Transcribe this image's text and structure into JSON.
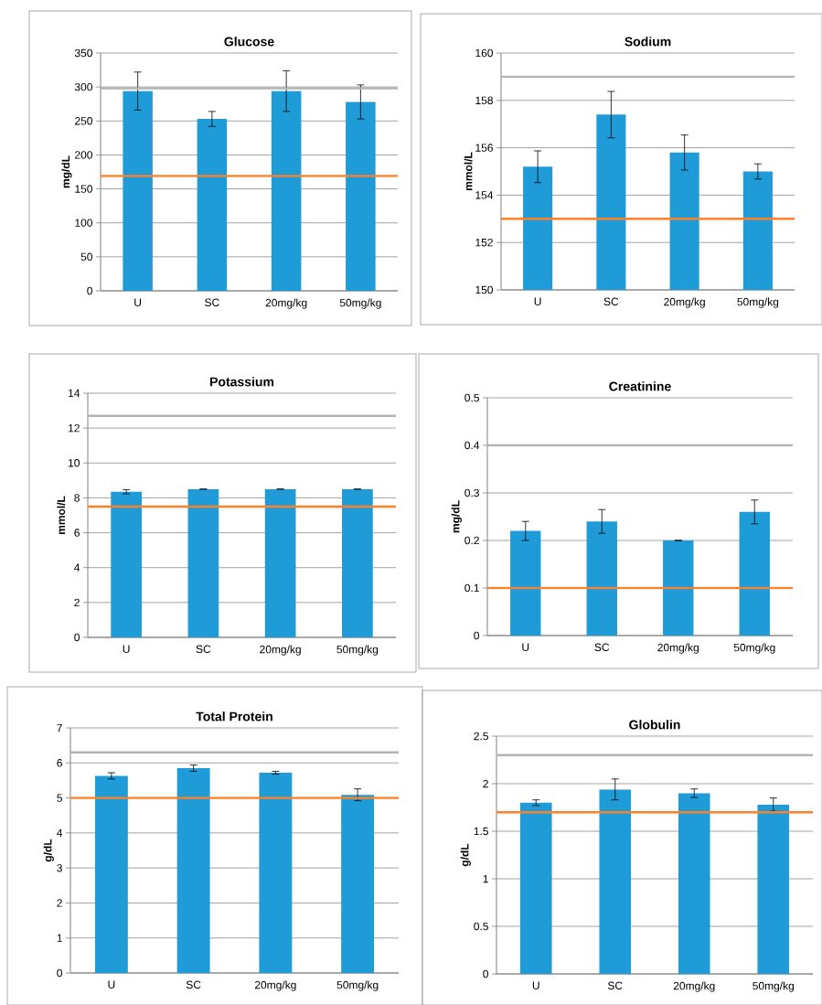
{
  "chart_data": [
    {
      "type": "bar",
      "title": "Glucose",
      "ylabel": "mg/dL",
      "categories": [
        "U",
        "SC",
        "20mg/kg",
        "50mg/kg"
      ],
      "values": [
        294,
        253,
        294,
        278
      ],
      "errors": [
        28,
        11,
        30,
        25
      ],
      "color": "#1f9bd7",
      "ylim": [
        0,
        350
      ],
      "yticks": [
        0,
        50,
        100,
        150,
        200,
        250,
        300,
        350
      ],
      "grid": "y",
      "ref_lines": [
        {
          "axis": "y",
          "value": 298,
          "color": "#b3b3b3"
        },
        {
          "axis": "y",
          "value": 169,
          "color": "#ff8025"
        }
      ]
    },
    {
      "type": "bar",
      "title": "Sodium",
      "ylabel": "mmol/L",
      "categories": [
        "U",
        "SC",
        "20mg/kg",
        "50mg/kg"
      ],
      "values": [
        155.2,
        157.4,
        155.8,
        155.0
      ],
      "errors": [
        0.67,
        0.98,
        0.74,
        0.32
      ],
      "color": "#1f9bd7",
      "ylim": [
        150,
        160
      ],
      "yticks": [
        150,
        152,
        154,
        156,
        158,
        160
      ],
      "grid": "y",
      "ref_lines": [
        {
          "axis": "y",
          "value": 159,
          "color": "#b3b3b3"
        },
        {
          "axis": "y",
          "value": 153,
          "color": "#ff8025"
        }
      ]
    },
    {
      "type": "bar",
      "title": "Potassium",
      "ylabel": "mmol/L",
      "categories": [
        "U",
        "SC",
        "20mg/kg",
        "50mg/kg"
      ],
      "values": [
        8.35,
        8.5,
        8.5,
        8.5
      ],
      "errors": [
        0.12,
        0,
        0,
        0
      ],
      "color": "#1f9bd7",
      "ylim": [
        0,
        14
      ],
      "yticks": [
        0,
        2,
        4,
        6,
        8,
        10,
        12,
        14
      ],
      "grid": "y",
      "ref_lines": [
        {
          "axis": "y",
          "value": 12.7,
          "color": "#b3b3b3"
        },
        {
          "axis": "y",
          "value": 7.5,
          "color": "#ff8025"
        }
      ]
    },
    {
      "type": "bar",
      "title": "Creatinine",
      "ylabel": "mg/dL",
      "categories": [
        "U",
        "SC",
        "20mg/kg",
        "50mg/kg"
      ],
      "values": [
        0.22,
        0.24,
        0.2,
        0.26
      ],
      "errors": [
        0.02,
        0.025,
        0,
        0.025
      ],
      "color": "#1f9bd7",
      "ylim": [
        0,
        0.5
      ],
      "yticks": [
        0,
        0.1,
        0.2,
        0.3,
        0.4,
        0.5
      ],
      "grid": "y",
      "ref_lines": [
        {
          "axis": "y",
          "value": 0.4,
          "color": "#b3b3b3"
        },
        {
          "axis": "y",
          "value": 0.1,
          "color": "#ff8025"
        }
      ]
    },
    {
      "type": "bar",
      "title": "Total Protein",
      "ylabel": "g/dL",
      "categories": [
        "U",
        "SC",
        "20mg/kg",
        "50mg/kg"
      ],
      "values": [
        5.63,
        5.85,
        5.72,
        5.09
      ],
      "errors": [
        0.09,
        0.09,
        0.04,
        0.17
      ],
      "color": "#1f9bd7",
      "ylim": [
        0,
        7
      ],
      "yticks": [
        0,
        1,
        2,
        3,
        4,
        5,
        6,
        7
      ],
      "grid": "y",
      "ref_lines": [
        {
          "axis": "y",
          "value": 6.3,
          "color": "#b3b3b3"
        },
        {
          "axis": "y",
          "value": 5,
          "color": "#ff8025"
        }
      ]
    },
    {
      "type": "bar",
      "title": "Globulin",
      "ylabel": "g/dL",
      "categories": [
        "U",
        "SC",
        "20mg/kg",
        "50mg/kg"
      ],
      "values": [
        1.8,
        1.94,
        1.9,
        1.78
      ],
      "errors": [
        0.03,
        0.11,
        0.045,
        0.07
      ],
      "color": "#1f9bd7",
      "ylim": [
        0,
        2.5
      ],
      "yticks": [
        0,
        0.5,
        1,
        1.5,
        2,
        2.5
      ],
      "grid": "y",
      "ref_lines": [
        {
          "axis": "y",
          "value": 2.3,
          "color": "#b3b3b3"
        },
        {
          "axis": "y",
          "value": 1.7,
          "color": "#ff8025"
        }
      ]
    }
  ]
}
